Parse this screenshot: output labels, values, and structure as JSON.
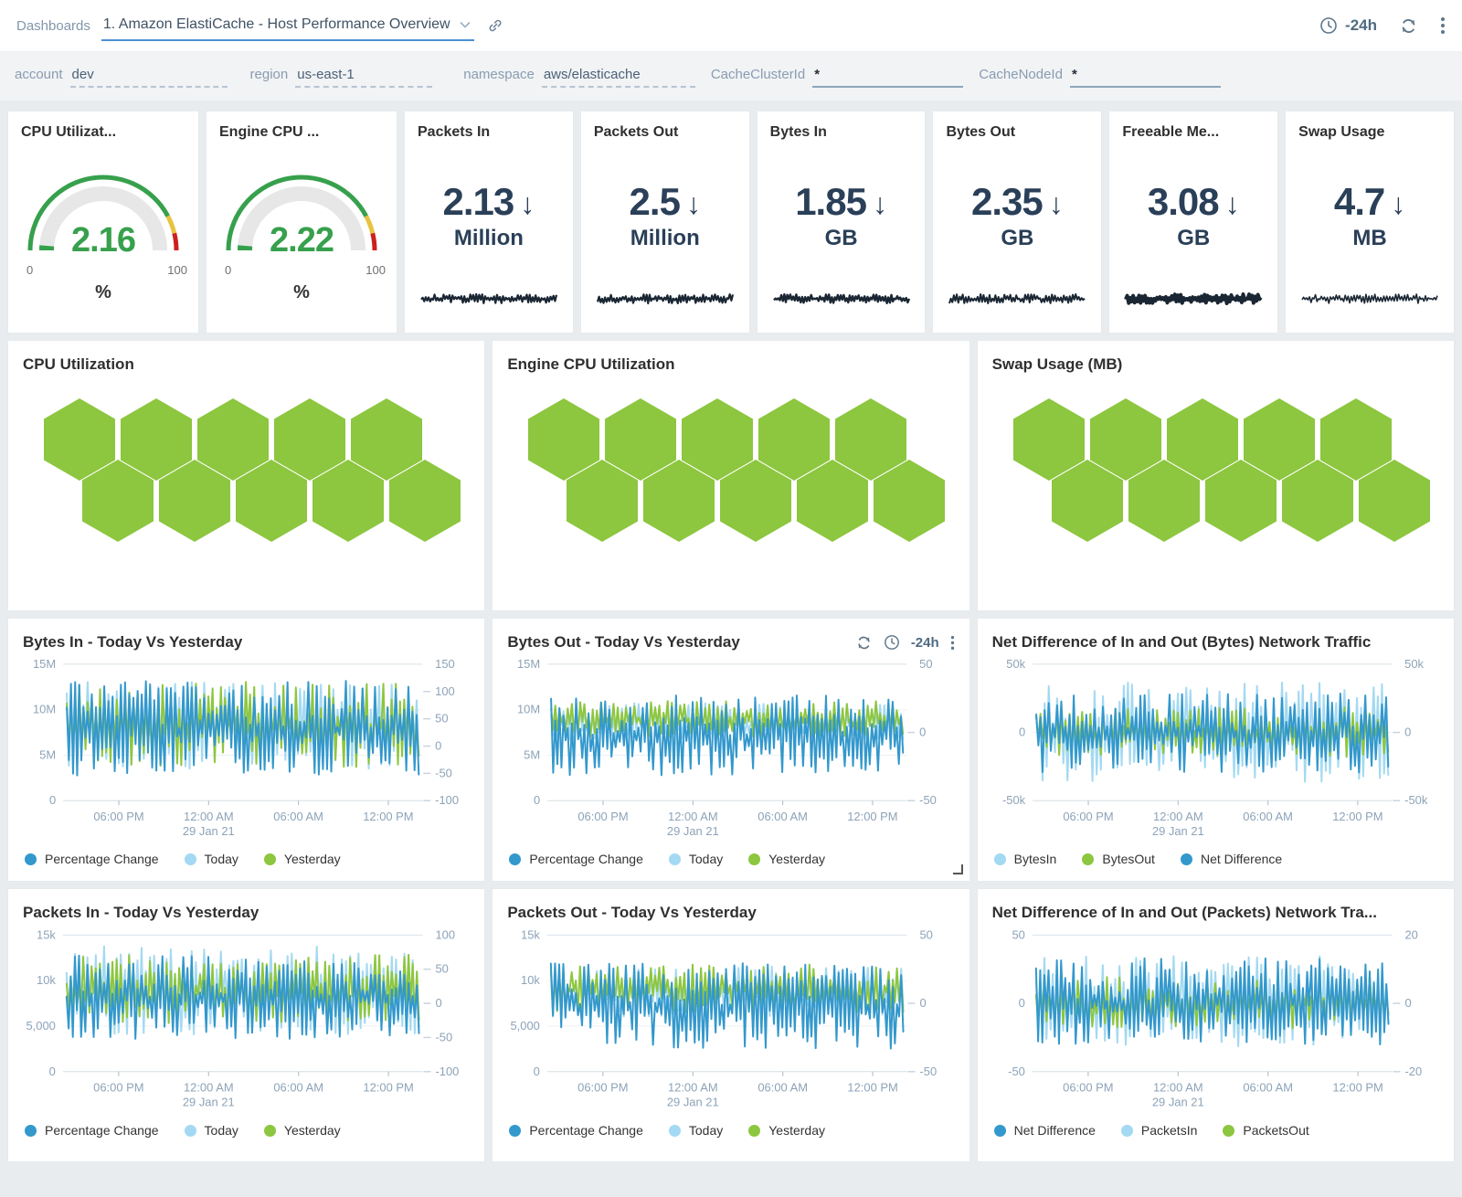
{
  "topbar": {
    "breadcrumb": "Dashboards",
    "title": "1. Amazon ElastiCache - Host Performance Overview",
    "time_range": "-24h"
  },
  "filters": [
    {
      "label": "account",
      "value": "dev",
      "underline": "dashed"
    },
    {
      "label": "region",
      "value": "us-east-1",
      "underline": "dashed"
    },
    {
      "label": "namespace",
      "value": "aws/elasticache",
      "underline": "dashed"
    },
    {
      "label": "CacheClusterId",
      "value": "*",
      "underline": "solid"
    },
    {
      "label": "CacheNodeId",
      "value": "*",
      "underline": "solid"
    }
  ],
  "colors": {
    "pct_blue": "#3398cc",
    "today_light_blue": "#a3d9f2",
    "yesterday_green": "#8dc63f",
    "hex_green": "#8dc63f",
    "gauge_green": "#37a04c",
    "gauge_yellow": "#e8c341",
    "gauge_red": "#cc2020",
    "gauge_track": "#e7e7e7",
    "stat_navy": "#2a3f58",
    "spark_dark": "#1a2633",
    "axis_text": "#8da3b8"
  },
  "stat_cards": [
    {
      "type": "gauge",
      "title": "CPU Utilizat...",
      "value": "2.16",
      "num": 2.16,
      "min": "0",
      "max": "100",
      "unit": "%"
    },
    {
      "type": "gauge",
      "title": "Engine CPU ...",
      "value": "2.22",
      "num": 2.22,
      "min": "0",
      "max": "100",
      "unit": "%"
    },
    {
      "type": "number",
      "title": "Packets In",
      "value": "2.13",
      "unit": "Million",
      "trend": "down",
      "spark_seed": 101,
      "spark_weight": 2.2
    },
    {
      "type": "number",
      "title": "Packets Out",
      "value": "2.5",
      "unit": "Million",
      "trend": "down",
      "spark_seed": 102,
      "spark_weight": 2.2
    },
    {
      "type": "number",
      "title": "Bytes In",
      "value": "1.85",
      "unit": "GB",
      "trend": "down",
      "spark_seed": 103,
      "spark_weight": 2.4
    },
    {
      "type": "number",
      "title": "Bytes Out",
      "value": "2.35",
      "unit": "GB",
      "trend": "down",
      "spark_seed": 104,
      "spark_weight": 2.0
    },
    {
      "type": "number",
      "title": "Freeable Me...",
      "value": "3.08",
      "unit": "GB",
      "trend": "down",
      "spark_seed": 105,
      "spark_weight": 4.0
    },
    {
      "type": "number",
      "title": "Swap Usage",
      "value": "4.7",
      "unit": "MB",
      "trend": "down",
      "spark_seed": 106,
      "spark_weight": 1.6
    }
  ],
  "honeycombs": [
    {
      "title": "CPU Utilization",
      "rows": [
        5,
        5
      ],
      "cell_color": "#8dc63f"
    },
    {
      "title": "Engine CPU Utilization",
      "rows": [
        5,
        5
      ],
      "cell_color": "#8dc63f"
    },
    {
      "title": "Swap Usage (MB)",
      "rows": [
        5,
        5
      ],
      "cell_color": "#8dc63f"
    }
  ],
  "chart_data": [
    {
      "type": "line",
      "title": "Bytes In - Today Vs Yesterday",
      "x_ticks": [
        "06:00 PM",
        "12:00 AM",
        "06:00 AM",
        "12:00 PM"
      ],
      "x_sub_label": "29 Jan 21",
      "left_axis": {
        "ticks": [
          "15M",
          "10M",
          "5M",
          "0"
        ],
        "range": [
          0,
          15000000
        ]
      },
      "right_axis": {
        "ticks": [
          "150",
          "100",
          "50",
          "0",
          "-50",
          "-100"
        ],
        "range": [
          -100,
          150
        ]
      },
      "legend": [
        {
          "label": "Percentage Change",
          "color": "#3398cc"
        },
        {
          "label": "Today",
          "color": "#a3d9f2"
        },
        {
          "label": "Yesterday",
          "color": "#8dc63f"
        }
      ],
      "series": [
        {
          "name": "Today",
          "color": "#a3d9f2",
          "axis": "left",
          "band": [
            3100000,
            13600000
          ],
          "seed": 12
        },
        {
          "name": "Yesterday",
          "color": "#8dc63f",
          "axis": "left",
          "band": [
            3300000,
            13500000
          ],
          "seed": 11
        },
        {
          "name": "Percentage Change",
          "color": "#3398cc",
          "axis": "right",
          "band": [
            -62,
            128
          ],
          "seed": 13
        }
      ]
    },
    {
      "type": "line",
      "title": "Bytes Out - Today Vs Yesterday",
      "controls": {
        "time_range": "-24h"
      },
      "resize_handle": true,
      "x_ticks": [
        "06:00 PM",
        "12:00 AM",
        "06:00 AM",
        "12:00 PM"
      ],
      "x_sub_label": "29 Jan 21",
      "left_axis": {
        "ticks": [
          "15M",
          "10M",
          "5M",
          "0"
        ],
        "range": [
          0,
          15000000
        ]
      },
      "right_axis": {
        "ticks": [
          "50",
          "0",
          "-50"
        ],
        "range": [
          -50,
          50
        ]
      },
      "legend": [
        {
          "label": "Percentage Change",
          "color": "#3398cc"
        },
        {
          "label": "Today",
          "color": "#a3d9f2"
        },
        {
          "label": "Yesterday",
          "color": "#8dc63f"
        }
      ],
      "series": [
        {
          "name": "Today",
          "color": "#a3d9f2",
          "axis": "left",
          "band": [
            6500000,
            10900000
          ],
          "seed": 22
        },
        {
          "name": "Yesterday",
          "color": "#8dc63f",
          "axis": "left",
          "band": [
            6800000,
            11200000
          ],
          "seed": 21
        },
        {
          "name": "Percentage Change",
          "color": "#3398cc",
          "axis": "right",
          "band": [
            -34,
            30
          ],
          "seed": 23
        }
      ]
    },
    {
      "type": "line",
      "title": "Net Difference of In and Out (Bytes) Network Traffic",
      "x_ticks": [
        "06:00 PM",
        "12:00 AM",
        "06:00 AM",
        "12:00 PM"
      ],
      "x_sub_label": "29 Jan 21",
      "left_axis": {
        "ticks": [
          "50k",
          "0",
          "-50k"
        ],
        "range": [
          -50000,
          50000
        ]
      },
      "right_axis": {
        "ticks": [
          "50k",
          "0",
          "-50k"
        ],
        "range": [
          -50000,
          50000
        ]
      },
      "legend": [
        {
          "label": "BytesIn",
          "color": "#a3d9f2"
        },
        {
          "label": "BytesOut",
          "color": "#8dc63f"
        },
        {
          "label": "Net Difference",
          "color": "#3398cc"
        }
      ],
      "series": [
        {
          "name": "BytesIn",
          "color": "#a3d9f2",
          "axis": "left",
          "band": [
            -40000,
            40000
          ],
          "seed": 31
        },
        {
          "name": "BytesOut",
          "color": "#8dc63f",
          "axis": "left",
          "band": [
            -20000,
            20000
          ],
          "seed": 32
        },
        {
          "name": "Net Difference",
          "color": "#3398cc",
          "axis": "left",
          "band": [
            -32000,
            32000
          ],
          "seed": 33
        }
      ]
    },
    {
      "type": "line",
      "title": "Packets In - Today Vs Yesterday",
      "x_ticks": [
        "06:00 PM",
        "12:00 AM",
        "06:00 AM",
        "12:00 PM"
      ],
      "x_sub_label": "29 Jan 21",
      "left_axis": {
        "ticks": [
          "15k",
          "10k",
          "5,000",
          "0"
        ],
        "range": [
          0,
          15000
        ]
      },
      "right_axis": {
        "ticks": [
          "100",
          "50",
          "0",
          "-50",
          "-100"
        ],
        "range": [
          -100,
          100
        ]
      },
      "legend": [
        {
          "label": "Percentage Change",
          "color": "#3398cc"
        },
        {
          "label": "Today",
          "color": "#a3d9f2"
        },
        {
          "label": "Yesterday",
          "color": "#8dc63f"
        }
      ],
      "series": [
        {
          "name": "Today",
          "color": "#a3d9f2",
          "axis": "left",
          "band": [
            3600,
            14200
          ],
          "seed": 42
        },
        {
          "name": "Yesterday",
          "color": "#8dc63f",
          "axis": "left",
          "band": [
            5000,
            13200
          ],
          "seed": 41
        },
        {
          "name": "Percentage Change",
          "color": "#3398cc",
          "axis": "right",
          "band": [
            -58,
            78
          ],
          "seed": 43
        }
      ]
    },
    {
      "type": "line",
      "title": "Packets Out - Today Vs Yesterday",
      "x_ticks": [
        "06:00 PM",
        "12:00 AM",
        "06:00 AM",
        "12:00 PM"
      ],
      "x_sub_label": "29 Jan 21",
      "left_axis": {
        "ticks": [
          "15k",
          "10k",
          "5,000",
          "0"
        ],
        "range": [
          0,
          15000
        ]
      },
      "right_axis": {
        "ticks": [
          "50",
          "0",
          "-50"
        ],
        "range": [
          -50,
          50
        ]
      },
      "legend": [
        {
          "label": "Percentage Change",
          "color": "#3398cc"
        },
        {
          "label": "Today",
          "color": "#a3d9f2"
        },
        {
          "label": "Yesterday",
          "color": "#8dc63f"
        }
      ],
      "series": [
        {
          "name": "Today",
          "color": "#a3d9f2",
          "axis": "left",
          "band": [
            5800,
            11800
          ],
          "seed": 52
        },
        {
          "name": "Yesterday",
          "color": "#8dc63f",
          "axis": "left",
          "band": [
            6200,
            12000
          ],
          "seed": 51
        },
        {
          "name": "Percentage Change",
          "color": "#3398cc",
          "axis": "right",
          "band": [
            -36,
            34
          ],
          "seed": 53
        }
      ]
    },
    {
      "type": "line",
      "title": "Net Difference of In and Out (Packets) Network Tra...",
      "x_ticks": [
        "06:00 PM",
        "12:00 AM",
        "06:00 AM",
        "12:00 PM"
      ],
      "x_sub_label": "29 Jan 21",
      "left_axis": {
        "ticks": [
          "50",
          "0",
          "-50"
        ],
        "range": [
          -50,
          50
        ]
      },
      "right_axis": {
        "ticks": [
          "20",
          "0",
          "-20"
        ],
        "range": [
          -20,
          20
        ]
      },
      "legend": [
        {
          "label": "Net Difference",
          "color": "#3398cc"
        },
        {
          "label": "PacketsIn",
          "color": "#a3d9f2"
        },
        {
          "label": "PacketsOut",
          "color": "#8dc63f"
        }
      ],
      "series": [
        {
          "name": "PacketsIn",
          "color": "#a3d9f2",
          "axis": "right",
          "band": [
            -14,
            15
          ],
          "seed": 61
        },
        {
          "name": "PacketsOut",
          "color": "#8dc63f",
          "axis": "right",
          "band": [
            -8,
            9
          ],
          "seed": 62
        },
        {
          "name": "Net Difference",
          "color": "#3398cc",
          "axis": "left",
          "band": [
            -33,
            36
          ],
          "seed": 63
        }
      ]
    }
  ]
}
